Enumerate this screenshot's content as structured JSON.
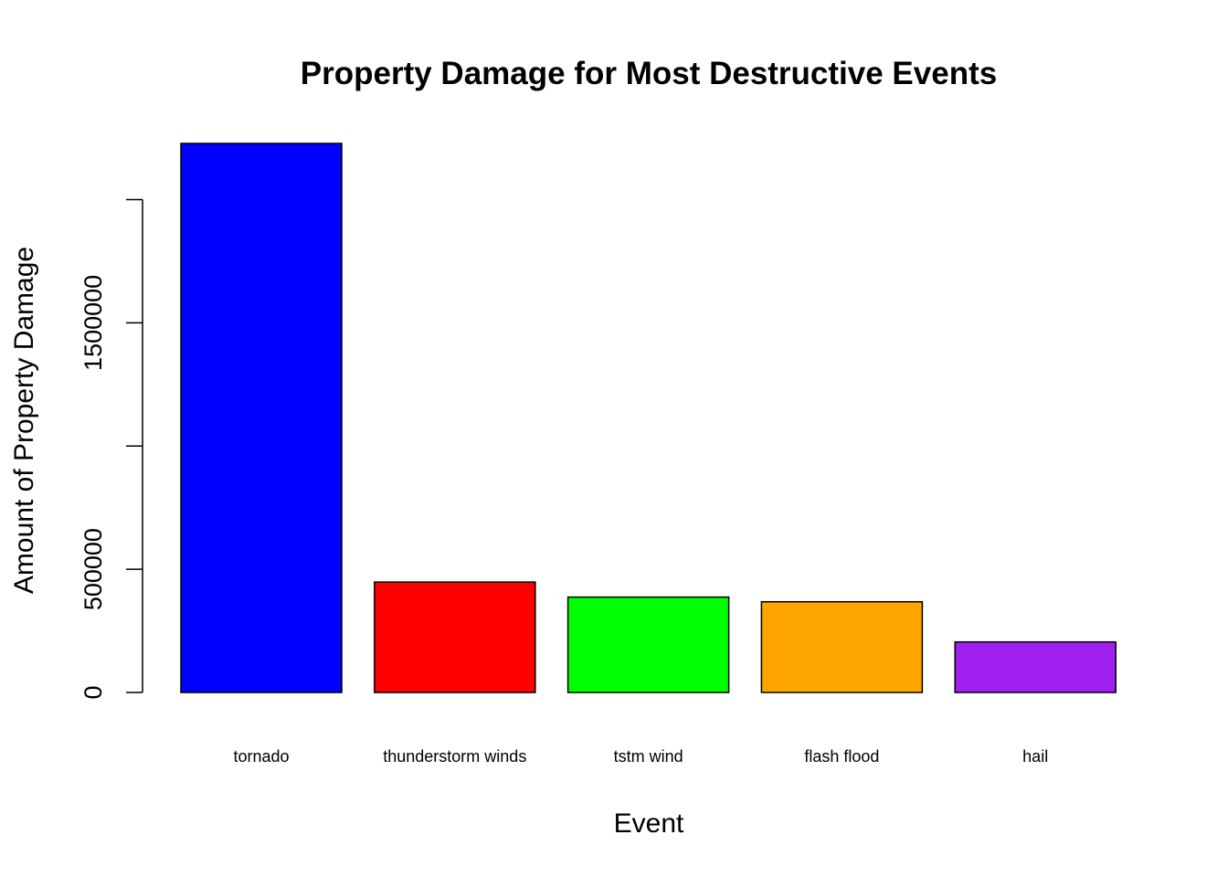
{
  "chart_data": {
    "type": "bar",
    "title": "Property Damage for Most Destructive Events",
    "xlabel": "Event",
    "ylabel": "Amount of Property Damage",
    "categories": [
      "tornado",
      "thunderstorm winds",
      "tstm wind",
      "flash flood",
      "hail"
    ],
    "values": [
      2228000,
      448000,
      387000,
      368000,
      205000
    ],
    "colors": [
      "#0000ff",
      "#ff0000",
      "#00ff00",
      "#ffa500",
      "#a020f0"
    ],
    "ylim": [
      0,
      2228000
    ],
    "y_ticks": [
      0,
      500000,
      1000000,
      1500000,
      2000000
    ],
    "y_tick_labels": [
      "0",
      "500000",
      "",
      "1500000",
      ""
    ],
    "grid": false,
    "legend": "none"
  }
}
